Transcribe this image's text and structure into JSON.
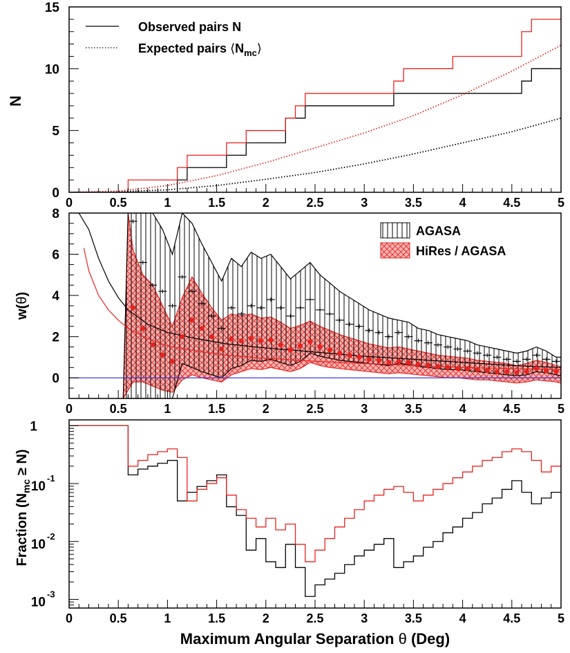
{
  "colors": {
    "black": "#000000",
    "red": "#e8231f",
    "blue": "#3a3ad6",
    "fill_red": "#f4b6b4"
  },
  "chart_data": [
    {
      "type": "line",
      "id": "top",
      "ylabel": "N",
      "xlim": [
        0,
        5
      ],
      "ylim": [
        0,
        15
      ],
      "xticks": [
        "0",
        "0.5",
        "1",
        "1.5",
        "2",
        "2.5",
        "3",
        "3.5",
        "4",
        "4.5",
        "5"
      ],
      "yticks": [
        "0",
        "5",
        "10",
        "15"
      ],
      "legend": {
        "placement": "top-left",
        "observed_label": "Observed pairs N",
        "expected_label_prefix": "Expected pairs ",
        "expected_label_lang": "⟨",
        "expected_label_N": "N",
        "expected_label_sub": "mc",
        "expected_label_rang": "⟩"
      },
      "series": [
        {
          "color": "black",
          "style": "step",
          "x": [
            0,
            0.6,
            1.1,
            1.2,
            1.6,
            1.8,
            2.2,
            2.4,
            3.3,
            4.6,
            4.7,
            5.0
          ],
          "values": [
            0,
            0,
            1,
            2,
            3,
            4,
            6,
            7,
            8,
            9,
            10,
            10
          ]
        },
        {
          "color": "red",
          "style": "step",
          "x": [
            0,
            0.6,
            1.1,
            1.2,
            1.6,
            1.8,
            2.2,
            2.3,
            2.4,
            3.3,
            3.4,
            3.9,
            4.6,
            4.7,
            5.0
          ],
          "values": [
            0,
            1,
            2,
            3,
            4,
            5,
            6,
            7,
            8,
            9,
            10,
            11,
            13,
            14,
            14
          ]
        },
        {
          "color": "black",
          "style": "dotted",
          "x": [
            0,
            0.5,
            1.0,
            1.5,
            2.0,
            2.5,
            3.0,
            3.5,
            4.0,
            4.5,
            5.0
          ],
          "values": [
            0,
            0.05,
            0.2,
            0.55,
            1.05,
            1.6,
            2.3,
            3.1,
            4.0,
            4.9,
            6.0
          ]
        },
        {
          "color": "red",
          "style": "dotted",
          "x": [
            0,
            0.5,
            1.0,
            1.5,
            2.0,
            2.5,
            3.0,
            3.5,
            4.0,
            4.5,
            5.0
          ],
          "values": [
            0,
            0.1,
            0.55,
            1.35,
            2.4,
            3.6,
            4.8,
            6.2,
            7.9,
            9.8,
            11.9
          ]
        }
      ]
    },
    {
      "type": "area",
      "id": "middle",
      "ylabel_w": "w(",
      "ylabel_theta": "θ",
      "ylabel_close": ")",
      "xlim": [
        0,
        5
      ],
      "ylim": [
        -1,
        8
      ],
      "xticks": [
        "0",
        "0.5",
        "1",
        "1.5",
        "2",
        "2.5",
        "3",
        "3.5",
        "4",
        "4.5",
        "5"
      ],
      "yticks": [
        "0",
        "2",
        "4",
        "6",
        "8"
      ],
      "legend": {
        "placement": "top-right",
        "agasa_label": "AGASA",
        "hires_label": "HiRes / AGASA"
      },
      "agasa_band": {
        "x": [
          0.55,
          0.6,
          0.65,
          0.75,
          0.85,
          0.95,
          1.05,
          1.15,
          1.25,
          1.35,
          1.45,
          1.55,
          1.65,
          1.75,
          1.85,
          1.95,
          2.05,
          2.15,
          2.25,
          2.35,
          2.45,
          2.55,
          2.65,
          2.75,
          2.85,
          2.95,
          3.05,
          3.15,
          3.25,
          3.35,
          3.45,
          3.55,
          3.65,
          3.75,
          3.85,
          3.95,
          4.05,
          4.15,
          4.25,
          4.35,
          4.45,
          4.55,
          4.65,
          4.75,
          4.85,
          4.95,
          5.0
        ],
        "upper": [
          -1,
          8,
          8,
          8,
          8,
          7.2,
          6.0,
          8,
          7.5,
          6.5,
          5.6,
          4.7,
          5.8,
          5.4,
          6.1,
          5.8,
          6.0,
          5.4,
          4.8,
          5.2,
          5.6,
          5.0,
          4.6,
          4.2,
          3.9,
          3.6,
          3.3,
          3.1,
          2.9,
          2.8,
          2.7,
          2.4,
          2.3,
          2.1,
          2.0,
          1.9,
          1.8,
          1.6,
          1.5,
          1.4,
          1.3,
          1.2,
          1.3,
          1.5,
          1.3,
          1.0,
          1.0
        ],
        "lower": [
          -1,
          -1,
          -1,
          -1,
          -1,
          -1,
          -1,
          0.7,
          0.5,
          0.3,
          0.15,
          0.0,
          0.45,
          0.6,
          0.85,
          0.8,
          0.9,
          0.75,
          0.6,
          0.8,
          1.2,
          1.05,
          0.95,
          0.85,
          0.8,
          0.75,
          0.7,
          0.65,
          0.6,
          0.7,
          0.65,
          0.55,
          0.5,
          0.45,
          0.4,
          0.4,
          0.35,
          0.3,
          0.25,
          0.2,
          0.15,
          0.1,
          0.15,
          0.3,
          0.25,
          0.15,
          0.1
        ]
      },
      "hires_band": {
        "x": [
          0.55,
          0.6,
          0.65,
          0.75,
          0.85,
          0.95,
          1.05,
          1.15,
          1.25,
          1.35,
          1.45,
          1.55,
          1.65,
          1.75,
          1.85,
          1.95,
          2.05,
          2.15,
          2.25,
          2.35,
          2.45,
          2.55,
          2.65,
          2.75,
          2.85,
          2.95,
          3.05,
          3.15,
          3.25,
          3.35,
          3.45,
          3.55,
          3.65,
          3.75,
          3.85,
          3.95,
          4.05,
          4.15,
          4.25,
          4.35,
          4.45,
          4.55,
          4.65,
          4.75,
          4.85,
          4.95,
          5.0
        ],
        "upper": [
          -1,
          8,
          6.2,
          5.0,
          4.5,
          3.5,
          2.5,
          3.9,
          4.9,
          4.1,
          3.4,
          2.8,
          3.1,
          3.0,
          3.1,
          2.9,
          2.95,
          2.7,
          2.4,
          2.55,
          2.75,
          2.5,
          2.3,
          2.1,
          1.95,
          1.8,
          1.65,
          1.55,
          1.45,
          1.5,
          1.4,
          1.3,
          1.2,
          1.1,
          1.05,
          1.0,
          0.95,
          0.85,
          0.8,
          0.75,
          0.7,
          0.6,
          0.7,
          0.85,
          0.75,
          0.6,
          0.55
        ],
        "lower": [
          -1,
          -0.6,
          -0.2,
          -0.2,
          -0.4,
          -0.6,
          -0.7,
          -0.1,
          0.15,
          0.0,
          -0.1,
          -0.2,
          0.15,
          0.3,
          0.45,
          0.4,
          0.5,
          0.4,
          0.3,
          0.45,
          0.75,
          0.6,
          0.5,
          0.45,
          0.4,
          0.35,
          0.3,
          0.25,
          0.2,
          0.25,
          0.2,
          0.15,
          0.1,
          0.05,
          0.0,
          0.0,
          -0.05,
          -0.1,
          -0.1,
          -0.15,
          -0.2,
          -0.25,
          -0.2,
          -0.1,
          -0.15,
          -0.2,
          -0.25
        ]
      },
      "agasa_points": {
        "x": [
          0.65,
          0.75,
          0.85,
          0.95,
          1.05,
          1.15,
          1.25,
          1.35,
          1.45,
          1.55,
          1.65,
          1.75,
          1.85,
          1.95,
          2.05,
          2.15,
          2.25,
          2.35,
          2.45,
          2.55,
          2.65,
          2.75,
          2.85,
          2.95,
          3.05,
          3.15,
          3.25,
          3.35,
          3.45,
          3.55,
          3.65,
          3.75,
          3.85,
          3.95,
          4.05,
          4.15,
          4.25,
          4.35,
          4.45,
          4.55,
          4.65,
          4.75,
          4.85,
          4.95
        ],
        "values": [
          7.6,
          5.6,
          4.5,
          4.2,
          3.5,
          4.9,
          4.2,
          3.6,
          3.0,
          2.4,
          3.4,
          3.1,
          3.5,
          3.4,
          3.8,
          3.4,
          3.0,
          3.4,
          3.8,
          3.3,
          3.1,
          2.8,
          2.6,
          2.5,
          2.3,
          2.2,
          2.0,
          2.2,
          2.0,
          1.8,
          1.7,
          1.6,
          1.5,
          1.4,
          1.3,
          1.2,
          1.1,
          1.0,
          0.9,
          0.8,
          0.9,
          1.1,
          0.9,
          0.8
        ]
      },
      "hires_points": {
        "x": [
          0.65,
          0.75,
          0.85,
          0.95,
          1.05,
          1.15,
          1.25,
          1.35,
          1.45,
          1.55,
          1.65,
          1.75,
          1.85,
          1.95,
          2.05,
          2.15,
          2.25,
          2.35,
          2.45,
          2.55,
          2.65,
          2.75,
          2.85,
          2.95,
          3.05,
          3.15,
          3.25,
          3.35,
          3.45,
          3.55,
          3.65,
          3.75,
          3.85,
          3.95,
          4.05,
          4.15,
          4.25,
          4.35,
          4.45,
          4.55,
          4.65,
          4.75,
          4.85,
          4.95
        ],
        "values": [
          3.4,
          2.4,
          1.6,
          1.1,
          0.8,
          2.0,
          2.8,
          2.4,
          2.0,
          1.4,
          1.9,
          1.8,
          1.9,
          1.8,
          1.85,
          1.6,
          1.35,
          1.55,
          1.75,
          1.5,
          1.35,
          1.2,
          1.1,
          1.0,
          0.9,
          0.85,
          0.75,
          0.8,
          0.75,
          0.65,
          0.6,
          0.55,
          0.5,
          0.45,
          0.45,
          0.4,
          0.35,
          0.3,
          0.3,
          0.25,
          0.3,
          0.45,
          0.35,
          0.3
        ]
      },
      "black_curve": {
        "x": [
          0.1,
          0.2,
          0.3,
          0.4,
          0.5,
          0.6,
          0.8,
          1.0,
          1.3,
          1.6,
          2.0,
          2.5,
          3.0,
          3.5,
          4.0,
          4.5,
          5.0
        ],
        "values": [
          8,
          7.2,
          5.8,
          4.7,
          3.9,
          3.3,
          2.6,
          2.2,
          1.9,
          1.65,
          1.45,
          1.25,
          1.05,
          0.9,
          0.75,
          0.6,
          0.5
        ]
      },
      "red_curve": {
        "x": [
          0.15,
          0.2,
          0.3,
          0.4,
          0.5,
          0.6,
          0.8,
          1.0,
          1.3,
          1.6,
          2.0,
          2.5,
          3.0,
          3.5,
          4.0,
          4.5,
          5.0
        ],
        "values": [
          6.3,
          5.2,
          4.0,
          3.3,
          2.8,
          2.4,
          1.9,
          1.55,
          1.3,
          1.1,
          0.95,
          0.8,
          0.7,
          0.6,
          0.5,
          0.45,
          0.4
        ]
      }
    },
    {
      "type": "line",
      "id": "bottom",
      "ylabel_prefix": "Fraction (N",
      "ylabel_sub": "mc",
      "ylabel_suffix": " ≥ N)",
      "xlabel_prefix": "Maximum Angular Separation ",
      "xlabel_theta": "θ",
      "xlabel_suffix": " (Deg)",
      "xlim": [
        0,
        5
      ],
      "ylim_log10": [
        -3.15,
        0.1
      ],
      "log_y": true,
      "xticks": [
        "0",
        "0.5",
        "1",
        "1.5",
        "2",
        "2.5",
        "3",
        "3.5",
        "4",
        "4.5",
        "5"
      ],
      "yticks": [
        {
          "log": 0,
          "base": "1",
          "exp": ""
        },
        {
          "log": -1,
          "base": "10",
          "exp": "-1"
        },
        {
          "log": -2,
          "base": "10",
          "exp": "-2"
        },
        {
          "log": -3,
          "base": "10",
          "exp": "-3"
        }
      ],
      "series": [
        {
          "color": "black",
          "style": "step",
          "x": [
            0,
            0.6,
            0.7,
            0.8,
            0.9,
            1.0,
            1.1,
            1.2,
            1.3,
            1.4,
            1.5,
            1.6,
            1.7,
            1.8,
            1.9,
            2.0,
            2.1,
            2.2,
            2.3,
            2.4,
            2.5,
            2.6,
            2.7,
            2.8,
            2.9,
            3.0,
            3.1,
            3.2,
            3.3,
            3.4,
            3.5,
            3.6,
            3.7,
            3.8,
            3.9,
            4.0,
            4.1,
            4.2,
            4.3,
            4.4,
            4.5,
            4.6,
            4.7,
            4.8,
            4.9,
            5.0
          ],
          "log10": [
            0,
            -0.85,
            -0.75,
            -0.7,
            -0.65,
            -0.6,
            -1.3,
            -1.15,
            -1.05,
            -0.95,
            -0.85,
            -1.4,
            -1.55,
            -2.15,
            -1.95,
            -2.35,
            -2.45,
            -2.05,
            -2.45,
            -2.95,
            -2.75,
            -2.65,
            -2.55,
            -2.4,
            -2.25,
            -2.15,
            -2.05,
            -1.95,
            -2.45,
            -2.35,
            -2.25,
            -2.1,
            -2.0,
            -1.85,
            -1.75,
            -1.6,
            -1.5,
            -1.35,
            -1.25,
            -1.1,
            -0.95,
            -1.15,
            -1.35,
            -1.25,
            -1.15,
            -1.15
          ]
        },
        {
          "color": "red",
          "style": "step",
          "x": [
            0,
            0.6,
            0.7,
            0.8,
            0.9,
            1.0,
            1.1,
            1.2,
            1.3,
            1.4,
            1.5,
            1.6,
            1.7,
            1.8,
            1.9,
            2.0,
            2.1,
            2.2,
            2.3,
            2.4,
            2.5,
            2.6,
            2.7,
            2.8,
            2.9,
            3.0,
            3.1,
            3.2,
            3.3,
            3.4,
            3.5,
            3.6,
            3.7,
            3.8,
            3.9,
            4.0,
            4.1,
            4.2,
            4.3,
            4.4,
            4.5,
            4.6,
            4.7,
            4.8,
            4.9,
            5.0
          ],
          "log10": [
            0,
            -0.7,
            -0.6,
            -0.5,
            -0.45,
            -0.4,
            -0.55,
            -1.3,
            -1.1,
            -1.0,
            -0.9,
            -1.2,
            -1.45,
            -1.6,
            -1.75,
            -1.6,
            -1.8,
            -1.7,
            -2.05,
            -2.35,
            -2.15,
            -1.95,
            -1.75,
            -1.6,
            -1.45,
            -1.3,
            -1.2,
            -1.1,
            -1.05,
            -1.15,
            -1.3,
            -1.2,
            -1.1,
            -1.0,
            -0.9,
            -0.8,
            -0.7,
            -0.6,
            -0.55,
            -0.45,
            -0.4,
            -0.45,
            -0.6,
            -0.8,
            -0.7,
            -0.65
          ]
        }
      ]
    }
  ]
}
